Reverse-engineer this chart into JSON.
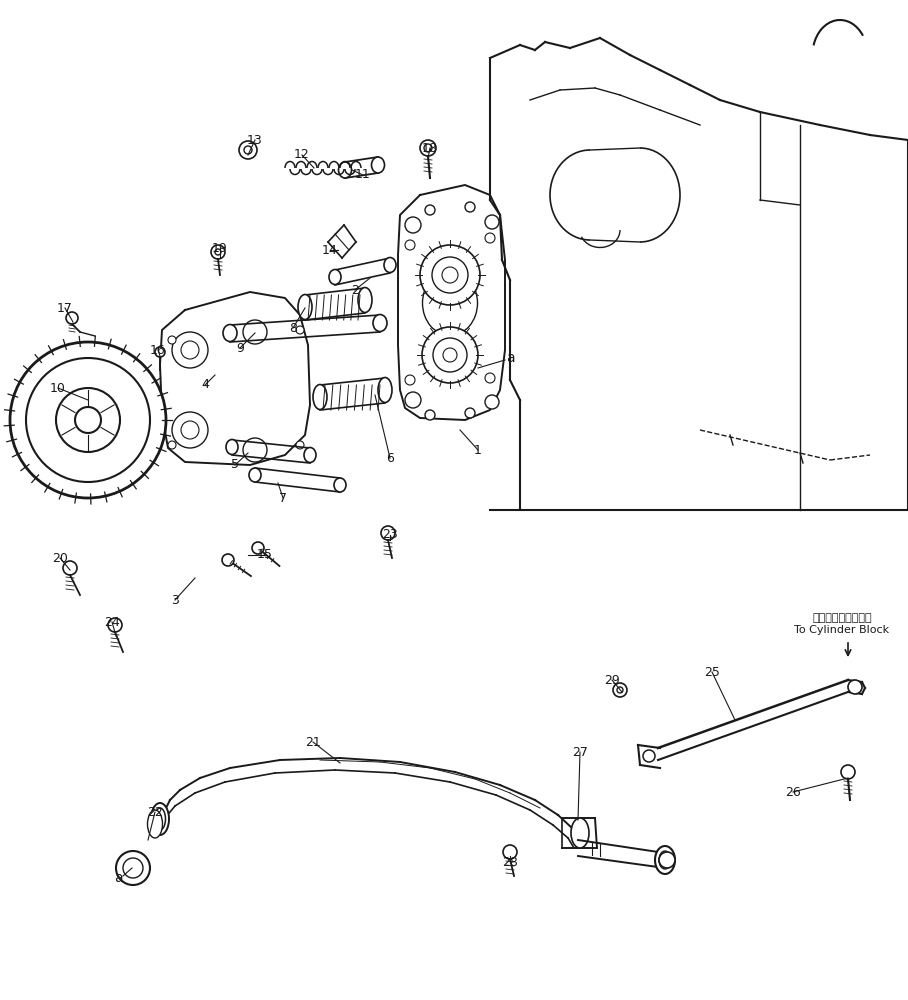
{
  "bg_color": "#ffffff",
  "line_color": "#1a1a1a",
  "cylinder_block_jp": "シリンダブロックへ",
  "cylinder_block_en": "To Cylinder Block"
}
